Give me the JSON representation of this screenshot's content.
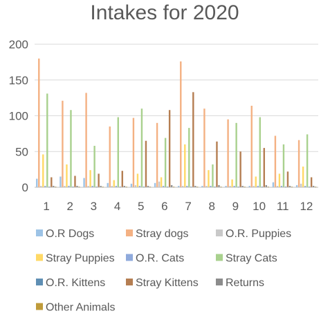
{
  "chart_data": {
    "type": "bar",
    "title": "Intakes for 2020",
    "xlabel": "",
    "ylabel": "",
    "ylim": [
      0,
      200
    ],
    "yticks": [
      0,
      50,
      100,
      150,
      200
    ],
    "grid": true,
    "legend_position": "bottom",
    "categories": [
      "1",
      "2",
      "3",
      "4",
      "5",
      "6",
      "7",
      "8",
      "9",
      "10",
      "11",
      "12"
    ],
    "series": [
      {
        "name": "O.R Dogs",
        "color": "#9dc3e6",
        "values": [
          12,
          15,
          13,
          6,
          5,
          6,
          2,
          2,
          2,
          2,
          7,
          3
        ]
      },
      {
        "name": "Stray dogs",
        "color": "#f4b183",
        "values": [
          180,
          121,
          132,
          85,
          97,
          90,
          176,
          110,
          95,
          114,
          72,
          66
        ]
      },
      {
        "name": "O.R. Puppies",
        "color": "#c9c9c9",
        "values": [
          2,
          2,
          2,
          2,
          3,
          8,
          2,
          2,
          2,
          2,
          2,
          5
        ]
      },
      {
        "name": "Stray Puppies",
        "color": "#ffd966",
        "values": [
          46,
          32,
          24,
          10,
          19,
          14,
          60,
          24,
          11,
          15,
          19,
          29
        ]
      },
      {
        "name": "O.R. Cats",
        "color": "#8faadc",
        "values": [
          2,
          2,
          2,
          2,
          2,
          2,
          2,
          2,
          2,
          2,
          2,
          2
        ]
      },
      {
        "name": "Stray Cats",
        "color": "#a9d18e",
        "values": [
          131,
          108,
          58,
          98,
          110,
          69,
          83,
          32,
          90,
          98,
          60,
          74
        ]
      },
      {
        "name": "O.R. Kittens",
        "color": "#5f8fb4",
        "values": [
          1,
          1,
          1,
          1,
          1,
          1,
          1,
          1,
          1,
          1,
          1,
          1
        ]
      },
      {
        "name": "Stray Kittens",
        "color": "#b57e52",
        "values": [
          14,
          16,
          19,
          23,
          65,
          108,
          133,
          64,
          50,
          55,
          22,
          14
        ]
      },
      {
        "name": "Returns",
        "color": "#8c8c8c",
        "values": [
          2,
          2,
          2,
          2,
          2,
          3,
          2,
          3,
          2,
          3,
          2,
          2
        ]
      },
      {
        "name": "Other Animals",
        "color": "#bf9b3a",
        "values": [
          1,
          1,
          1,
          1,
          1,
          1,
          1,
          1,
          1,
          1,
          1,
          1
        ]
      }
    ]
  }
}
